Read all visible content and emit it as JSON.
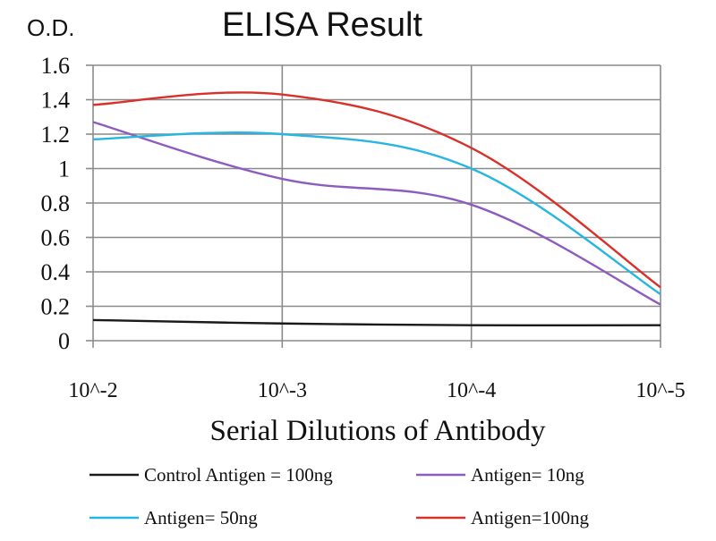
{
  "chart_data": {
    "type": "line",
    "title": "ELISA Result",
    "ylabel": "O.D.",
    "xlabel": "Serial Dilutions of Antibody",
    "categories": [
      "10^-2",
      "10^-3",
      "10^-4",
      "10^-5"
    ],
    "y_ticks": [
      "0",
      "0.2",
      "0.4",
      "0.6",
      "0.8",
      "1",
      "1.2",
      "1.4",
      "1.6"
    ],
    "ylim": [
      0,
      1.6
    ],
    "grid": true,
    "legend_position": "bottom",
    "series": [
      {
        "name": "Control Antigen = 100ng",
        "color": "#1a1a1a",
        "points": [
          {
            "x": "10^-2",
            "y": 0.12
          },
          {
            "x": "10^-3",
            "y": 0.1
          },
          {
            "x": "10^-4",
            "y": 0.09
          },
          {
            "x": "10^-5",
            "y": 0.09
          }
        ]
      },
      {
        "name": "Antigen= 10ng",
        "color": "#8e5cbf",
        "points": [
          {
            "x": "10^-2",
            "y": 1.27
          },
          {
            "x": "10^-3",
            "y": 0.94
          },
          {
            "x": "10^-4",
            "y": 0.79
          },
          {
            "x": "10^-5",
            "y": 0.21
          }
        ]
      },
      {
        "name": "Antigen= 50ng",
        "color": "#27b5e3",
        "points": [
          {
            "x": "10^-2",
            "y": 1.17
          },
          {
            "x": "10^-3",
            "y": 1.2
          },
          {
            "x": "10^-4",
            "y": 1.0
          },
          {
            "x": "10^-5",
            "y": 0.27
          }
        ]
      },
      {
        "name": "Antigen=100ng",
        "color": "#d8312a",
        "points": [
          {
            "x": "10^-2",
            "y": 1.37
          },
          {
            "x": "10^-3",
            "y": 1.43
          },
          {
            "x": "10^-4",
            "y": 1.12
          },
          {
            "x": "10^-5",
            "y": 0.31
          }
        ]
      }
    ]
  }
}
